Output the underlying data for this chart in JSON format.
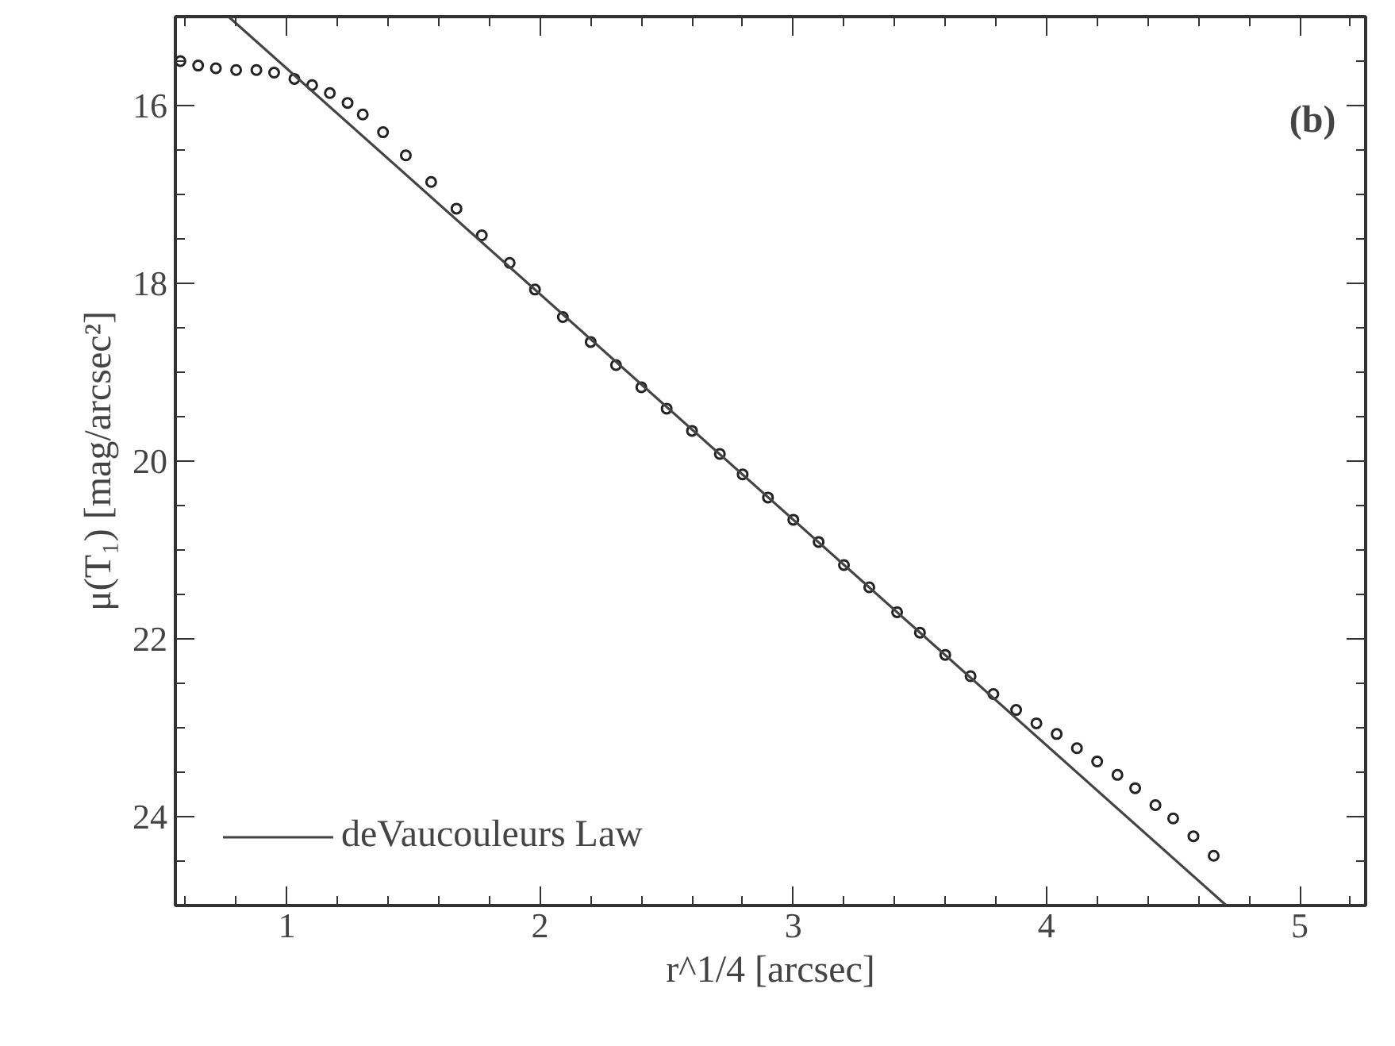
{
  "chart_data": {
    "type": "scatter",
    "xlabel": "r^1/4 [arcsec]",
    "ylabel": "μ(T₁) [mag/arcsec²]",
    "xlim": [
      0.56,
      5.26
    ],
    "ylim": [
      25,
      15
    ],
    "xticks": [
      1,
      2,
      3,
      4,
      5
    ],
    "yticks": [
      16,
      18,
      20,
      22,
      24
    ],
    "legend": "bottom left",
    "grid": false,
    "annotations": [
      "(b)"
    ],
    "series": [
      {
        "marker": "circle",
        "color": "#222222",
        "x": [
          0.58,
          0.65,
          0.72,
          0.8,
          0.88,
          0.95,
          1.03,
          1.1,
          1.17,
          1.24,
          1.3,
          1.38,
          1.47,
          1.57,
          1.67,
          1.77,
          1.88,
          1.98,
          2.09,
          2.2,
          2.3,
          2.4,
          2.5,
          2.6,
          2.71,
          2.8,
          2.9,
          3.0,
          3.1,
          3.2,
          3.3,
          3.41,
          3.5,
          3.6,
          3.7,
          3.79,
          3.88,
          3.96,
          4.04,
          4.12,
          4.2,
          4.28,
          4.35,
          4.43,
          4.5,
          4.58,
          4.66
        ],
        "values": [
          15.5,
          15.55,
          15.58,
          15.6,
          15.6,
          15.63,
          15.7,
          15.77,
          15.86,
          15.97,
          16.1,
          16.3,
          16.56,
          16.86,
          17.16,
          17.46,
          17.77,
          18.07,
          18.38,
          18.66,
          18.92,
          19.17,
          19.41,
          19.66,
          19.92,
          20.15,
          20.41,
          20.66,
          20.91,
          21.17,
          21.42,
          21.7,
          21.93,
          22.18,
          22.42,
          22.62,
          22.8,
          22.95,
          23.07,
          23.23,
          23.38,
          23.53,
          23.68,
          23.87,
          24.02,
          24.22,
          24.44
        ]
      },
      {
        "type": "line",
        "name": "deVaucouleurs Law",
        "color": "#444444",
        "line_style": "solid",
        "x": [
          0.77,
          4.71
        ],
        "values": [
          15,
          25
        ]
      }
    ]
  }
}
